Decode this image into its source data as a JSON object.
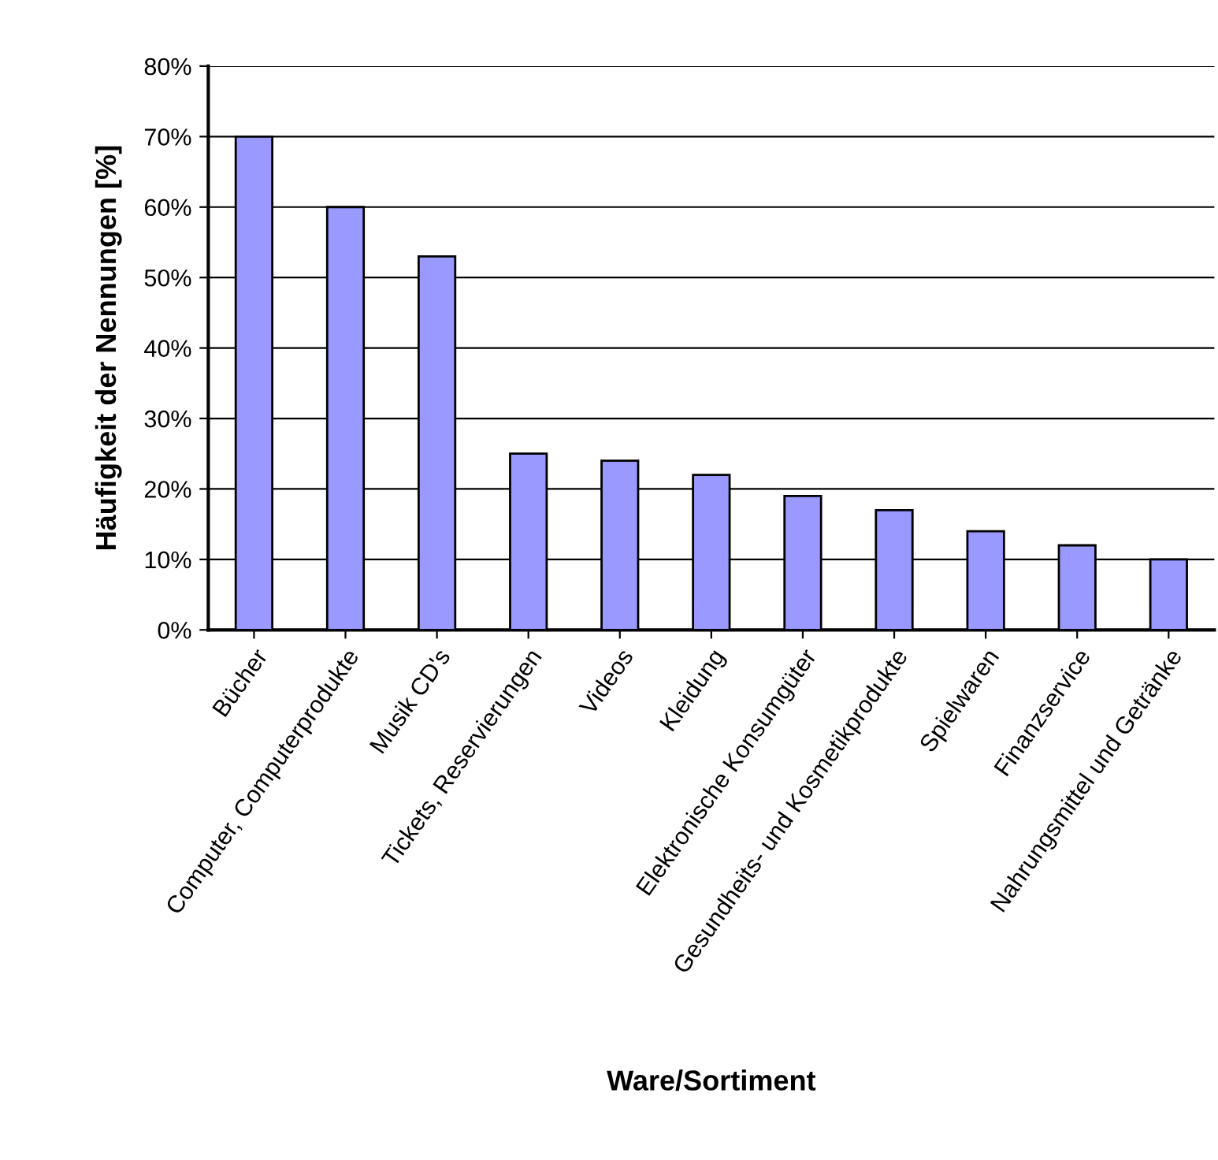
{
  "chart_data": {
    "type": "bar",
    "categories": [
      "Bücher",
      "Computer, Computerprodukte",
      "Musik CD's",
      "Tickets, Reservierungen",
      "Videos",
      "Kleidung",
      "Elektronische Konsumgüter",
      "Gesundheits- und Kosmetikprodukte",
      "Spielwaren",
      "Finanzservice",
      "Nahrungsmittel und Getränke"
    ],
    "values": [
      70,
      60,
      53,
      25,
      24,
      22,
      19,
      17,
      14,
      12,
      10
    ],
    "color": "#9999ff",
    "xlabel": "Ware/Sortiment",
    "ylabel": "Häufigkeit der Nennungen [%]",
    "ylim": [
      0,
      80
    ],
    "yticks": [
      {
        "value": 0,
        "label": "0%"
      },
      {
        "value": 10,
        "label": "10%"
      },
      {
        "value": 20,
        "label": "20%"
      },
      {
        "value": 30,
        "label": "30%"
      },
      {
        "value": 40,
        "label": "40%"
      },
      {
        "value": 50,
        "label": "50%"
      },
      {
        "value": 60,
        "label": "60%"
      },
      {
        "value": 70,
        "label": "70%"
      },
      {
        "value": 80,
        "label": "80%"
      }
    ],
    "grid": "y"
  }
}
